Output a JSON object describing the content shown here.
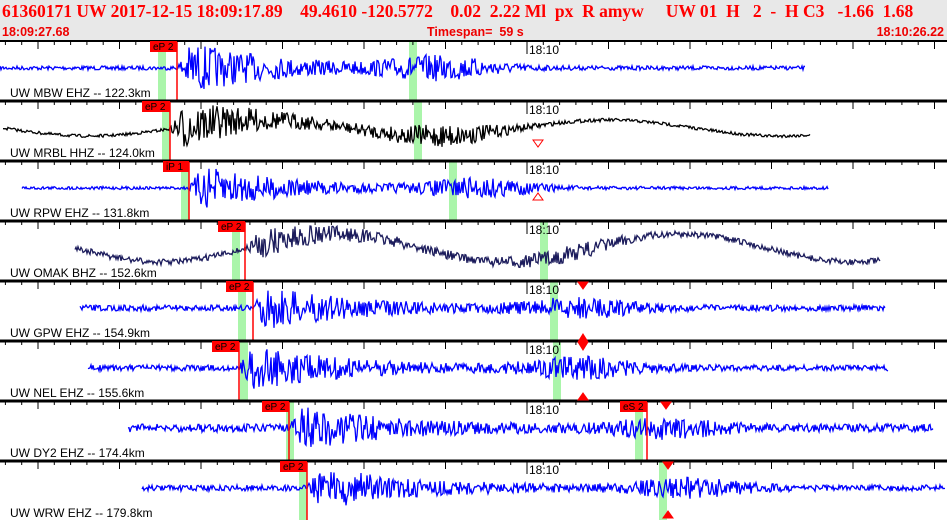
{
  "header": {
    "event_id": "61360171",
    "network": "UW",
    "date": "2017-12-15",
    "origin_time": "18:09:17.89",
    "lat": "49.4610",
    "lon": "-120.5772",
    "depth": "0.02",
    "magnitude": "2.22 Ml",
    "type": "px",
    "state": "R",
    "author": "amyw",
    "extra": "UW 01  H   2  -  H C3",
    "v1": "-1.66",
    "v2": "1.68",
    "start_time": "18:09:27.68",
    "timespan": "Timespan=  59 s",
    "end_time": "18:10:26.22"
  },
  "minute_label": "18:10",
  "colors": {
    "pick": "#ff0000",
    "predicted": "#aaf5aa",
    "trace_blue": "#0000ff",
    "trace_black": "#000000",
    "trace_navy": "#1c1c5c"
  },
  "traces": [
    {
      "label": "UW MBW EHZ -- 122.3km",
      "pick": "eP 2",
      "color": "#0000ff"
    },
    {
      "label": "UW MRBL HHZ -- 124.0km",
      "pick": "eP 2",
      "color": "#000000"
    },
    {
      "label": "UW RPW EHZ -- 131.8km",
      "pick": "iP 1",
      "color": "#0000ff"
    },
    {
      "label": "UW OMAK BHZ -- 152.6km",
      "pick": "eP 2",
      "color": "#1c1c5c"
    },
    {
      "label": "UW GPW EHZ -- 154.9km",
      "pick": "eP 2",
      "color": "#0000ff"
    },
    {
      "label": "UW NEL EHZ -- 155.6km",
      "pick": "eP 2",
      "color": "#0000ff"
    },
    {
      "label": "UW DY2 EHZ -- 174.4km",
      "pick": "eP 2",
      "pick2": "eS 2",
      "color": "#0000ff"
    },
    {
      "label": "UW WRW EHZ -- 179.8km",
      "pick": "eP 2",
      "color": "#0000ff"
    }
  ]
}
